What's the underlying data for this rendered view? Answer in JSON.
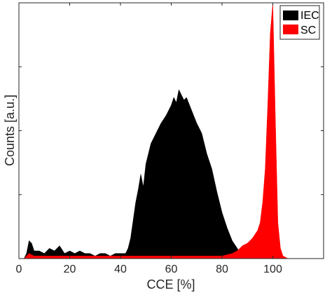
{
  "chart_data": {
    "type": "area",
    "xlabel": "CCE [%]",
    "ylabel": "Counts [a.u.]",
    "xlim": [
      0,
      120
    ],
    "ylim": [
      0,
      1
    ],
    "xticks": [
      0,
      20,
      40,
      60,
      80,
      100
    ],
    "yticks_count": 4,
    "grid": false,
    "legend_position": "top-right",
    "series": [
      {
        "name": "IEC",
        "color": "#000000",
        "x": [
          0,
          2,
          3,
          4,
          5,
          6,
          8,
          10,
          12,
          14,
          16,
          18,
          20,
          22,
          24,
          26,
          28,
          30,
          32,
          34,
          36,
          38,
          40,
          42,
          43,
          44,
          45,
          46,
          47,
          48,
          49,
          50,
          52,
          54,
          56,
          58,
          60,
          61,
          62,
          63,
          64,
          65,
          66,
          68,
          70,
          72,
          74,
          76,
          78,
          80,
          82,
          84,
          86,
          88,
          90
        ],
        "y": [
          0.0,
          0.0,
          0.02,
          0.07,
          0.06,
          0.03,
          0.03,
          0.02,
          0.04,
          0.03,
          0.05,
          0.02,
          0.03,
          0.02,
          0.03,
          0.02,
          0.02,
          0.01,
          0.02,
          0.02,
          0.01,
          0.02,
          0.02,
          0.02,
          0.04,
          0.08,
          0.15,
          0.22,
          0.27,
          0.33,
          0.28,
          0.37,
          0.45,
          0.49,
          0.53,
          0.56,
          0.6,
          0.63,
          0.61,
          0.66,
          0.64,
          0.62,
          0.63,
          0.58,
          0.53,
          0.49,
          0.41,
          0.35,
          0.26,
          0.18,
          0.12,
          0.07,
          0.04,
          0.01,
          0.0
        ]
      },
      {
        "name": "SC",
        "color": "#ff0000",
        "x": [
          0,
          2,
          3,
          4,
          6,
          10,
          20,
          30,
          40,
          50,
          60,
          70,
          80,
          84,
          86,
          88,
          90,
          92,
          94,
          95,
          96,
          97,
          98,
          99,
          100,
          101,
          102,
          103,
          104,
          106,
          110,
          120
        ],
        "y": [
          0.0,
          0.0,
          0.01,
          0.02,
          0.01,
          0.01,
          0.01,
          0.01,
          0.01,
          0.01,
          0.01,
          0.01,
          0.01,
          0.02,
          0.03,
          0.05,
          0.06,
          0.08,
          0.11,
          0.14,
          0.22,
          0.35,
          0.6,
          0.88,
          1.0,
          0.55,
          0.14,
          0.04,
          0.01,
          0.0,
          0.0,
          0.0
        ]
      }
    ]
  }
}
